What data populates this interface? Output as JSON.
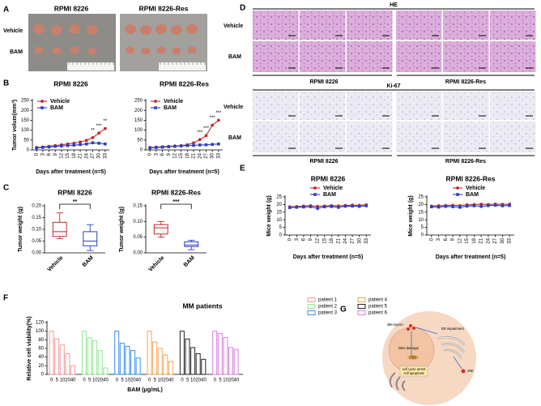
{
  "panel_labels": [
    "A",
    "B",
    "C",
    "D",
    "E",
    "F",
    "G"
  ],
  "photos_A": {
    "titles": [
      "RPMI 8226",
      "RPMI 8226-Res"
    ],
    "rows": [
      "Vehicle",
      "BAM"
    ]
  },
  "histology_D": {
    "stains": [
      "HE",
      "Ki-67"
    ],
    "rows": [
      "Vehicle",
      "BAM"
    ],
    "groups": [
      "RPMI 8226",
      "RPMI 8226-Res"
    ]
  },
  "diagram_G": {
    "labels": [
      "Bleomycin",
      "ER impairment",
      "DNA damage",
      "P53",
      "JNK",
      "cell cycle arrest",
      "cell apoptosis"
    ]
  },
  "chart_data": [
    {
      "type": "line",
      "title": "RPMI 8226",
      "xlabel": "Days after treatment (n=5)",
      "ylabel": "Tumor volum(mm³)",
      "x": [
        0,
        3,
        6,
        9,
        12,
        15,
        18,
        21,
        24,
        27,
        30,
        33
      ],
      "xlim": [
        -2,
        35
      ],
      "xticks": [
        0,
        3,
        6,
        9,
        12,
        15,
        18,
        21,
        24,
        27,
        30,
        33
      ],
      "ylim": [
        0,
        250
      ],
      "yticks": [
        0,
        50,
        100,
        150,
        200,
        250
      ],
      "legend": "upper-left",
      "series": [
        {
          "name": "Vehicle",
          "color": "#c0282d",
          "marker": "circle",
          "values": [
            12,
            15,
            18,
            22,
            26,
            30,
            34,
            40,
            48,
            62,
            85,
            108
          ]
        },
        {
          "name": "BAM",
          "color": "#2b3fc4",
          "marker": "square",
          "values": [
            10,
            13,
            15,
            18,
            20,
            22,
            24,
            27,
            30,
            36,
            34,
            30
          ]
        }
      ],
      "annotations": [
        {
          "x": 27,
          "label": "**"
        },
        {
          "x": 30,
          "label": "***"
        },
        {
          "x": 33,
          "label": "**"
        }
      ]
    },
    {
      "type": "line",
      "title": "RPMI 8226-Res",
      "xlabel": "Days after treatment (n=5)",
      "x": [
        0,
        3,
        6,
        9,
        12,
        15,
        18,
        21,
        24,
        27,
        30,
        33
      ],
      "xlim": [
        -2,
        35
      ],
      "xticks": [
        0,
        3,
        6,
        9,
        12,
        15,
        18,
        21,
        24,
        27,
        30,
        33
      ],
      "ylim": [
        0,
        250
      ],
      "yticks": [
        0,
        50,
        100,
        150,
        200,
        250
      ],
      "legend": "upper-left",
      "series": [
        {
          "name": "Vehicle",
          "color": "#c0282d",
          "marker": "circle",
          "values": [
            12,
            14,
            16,
            18,
            20,
            22,
            26,
            36,
            52,
            72,
            125,
            150
          ]
        },
        {
          "name": "BAM",
          "color": "#2b3fc4",
          "marker": "square",
          "values": [
            10,
            12,
            14,
            16,
            18,
            20,
            22,
            23,
            25,
            26,
            28,
            30
          ]
        }
      ],
      "annotations": [
        {
          "x": 24,
          "label": "***"
        },
        {
          "x": 27,
          "label": "***"
        },
        {
          "x": 30,
          "label": "***"
        },
        {
          "x": 33,
          "label": "***"
        }
      ]
    },
    {
      "type": "box",
      "title": "RPMI 8226",
      "ylabel": "Tumor weight (g)",
      "categories": [
        "Vehicle",
        "BAM"
      ],
      "colors": [
        "#c0282d",
        "#2b3fc4"
      ],
      "ylim": [
        0,
        0.2
      ],
      "yticks": [
        {
          "value": 0,
          "label": "0.00"
        },
        {
          "value": 0.05,
          "label": "0.05"
        },
        {
          "value": 0.1,
          "label": "0.10"
        },
        {
          "value": 0.15,
          "label": "0.15"
        },
        {
          "value": 0.2,
          "label": "0.20"
        }
      ],
      "boxes": [
        {
          "min": 0.06,
          "q1": 0.07,
          "median": 0.09,
          "q3": 0.13,
          "max": 0.17
        },
        {
          "min": 0.01,
          "q1": 0.03,
          "median": 0.05,
          "q3": 0.09,
          "max": 0.12
        }
      ],
      "significance": "**"
    },
    {
      "type": "box",
      "title": "RPMI 8226-Res",
      "ylabel": "Tumor weight (g)",
      "categories": [
        "Vehicle",
        "BAM"
      ],
      "colors": [
        "#c0282d",
        "#2b3fc4"
      ],
      "ylim": [
        0,
        0.15
      ],
      "yticks": [
        {
          "value": 0,
          "label": "0.00"
        },
        {
          "value": 0.05,
          "label": "0.05"
        },
        {
          "value": 0.1,
          "label": "0.10"
        },
        {
          "value": 0.15,
          "label": "0.15"
        }
      ],
      "boxes": [
        {
          "min": 0.05,
          "q1": 0.06,
          "median": 0.08,
          "q3": 0.09,
          "max": 0.1
        },
        {
          "min": 0.01,
          "q1": 0.02,
          "median": 0.025,
          "q3": 0.035,
          "max": 0.04
        }
      ],
      "significance": "***"
    },
    {
      "type": "line",
      "title": "RPMI 8226",
      "xlabel": "Days after treatment (n=5)",
      "ylabel": "Mice weight (g)",
      "x": [
        0,
        3,
        6,
        9,
        12,
        15,
        18,
        21,
        24,
        27,
        30,
        33
      ],
      "xlim": [
        -2,
        35
      ],
      "xticks": [
        0,
        3,
        6,
        9,
        12,
        15,
        18,
        21,
        24,
        27,
        30,
        33
      ],
      "ylim": [
        0,
        25
      ],
      "yticks": [
        0,
        5,
        10,
        15,
        20,
        25
      ],
      "legend": "upper-center",
      "series": [
        {
          "name": "Vehicle",
          "color": "#c0282d",
          "marker": "circle",
          "values": [
            18.5,
            18.7,
            19,
            19.2,
            18.8,
            19,
            19.3,
            19.1,
            19.4,
            19.6,
            19.5,
            19.8
          ]
        },
        {
          "name": "BAM",
          "color": "#2b3fc4",
          "marker": "square",
          "values": [
            18,
            18.2,
            18.4,
            18.6,
            17.5,
            18.5,
            18.7,
            18.2,
            18.9,
            19,
            18.8,
            19.2
          ]
        }
      ]
    },
    {
      "type": "line",
      "title": "RPMI 8226-Res",
      "xlabel": "Days after treatment (n=5)",
      "ylabel": "Mice weight (g)",
      "x": [
        0,
        3,
        6,
        9,
        12,
        15,
        18,
        21,
        24,
        27,
        30,
        33
      ],
      "xlim": [
        -2,
        35
      ],
      "xticks": [
        0,
        3,
        6,
        9,
        12,
        15,
        18,
        21,
        24,
        27,
        30,
        33
      ],
      "ylim": [
        0,
        25
      ],
      "yticks": [
        0,
        5,
        10,
        15,
        20,
        25
      ],
      "legend": "upper-center",
      "series": [
        {
          "name": "Vehicle",
          "color": "#c0282d",
          "marker": "circle",
          "values": [
            19,
            19.2,
            19.4,
            19.5,
            19.3,
            19.8,
            20,
            20.2,
            20,
            20.3,
            20.1,
            20.2
          ]
        },
        {
          "name": "BAM",
          "color": "#2b3fc4",
          "marker": "square",
          "values": [
            18.5,
            18.3,
            18.8,
            18.6,
            18.2,
            19,
            19.2,
            18.8,
            19.3,
            19.5,
            19.2,
            19.4
          ]
        }
      ]
    },
    {
      "type": "bar",
      "title": "MM patients",
      "xlabel": "BAM (μg/mL)",
      "ylabel": "Relative cell viability(%)",
      "categories": [
        "0",
        "5",
        "10",
        "20",
        "40"
      ],
      "ylim": [
        0,
        120
      ],
      "yticks": [
        0,
        20,
        40,
        60,
        80,
        100,
        120
      ],
      "series": [
        {
          "name": "patient 1",
          "color": "#f29a9a",
          "values": [
            100,
            82,
            68,
            48,
            20
          ]
        },
        {
          "name": "patient 2",
          "color": "#8fe88f",
          "values": [
            100,
            85,
            78,
            55,
            15
          ]
        },
        {
          "name": "patient 3",
          "color": "#3a8ee8",
          "values": [
            100,
            72,
            65,
            55,
            38
          ]
        },
        {
          "name": "patient 4",
          "color": "#f0a55a",
          "values": [
            100,
            75,
            60,
            45,
            30
          ]
        },
        {
          "name": "patient 5",
          "color": "#222222",
          "values": [
            100,
            82,
            62,
            48,
            35
          ]
        },
        {
          "name": "patient 6",
          "color": "#d67fe0",
          "values": [
            100,
            95,
            85,
            62,
            58
          ]
        }
      ]
    }
  ]
}
